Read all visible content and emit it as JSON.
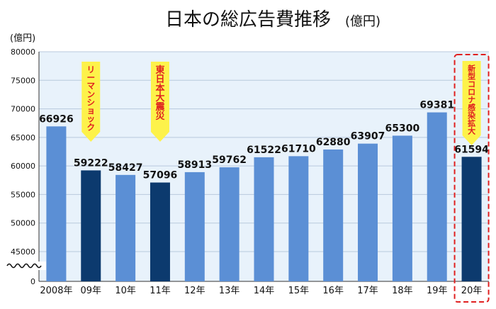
{
  "chart_data": {
    "type": "bar",
    "title": "日本の総広告費推移",
    "title_unit": "(億円)",
    "ylabel": "(億円)",
    "categories": [
      "2008年",
      "09年",
      "10年",
      "11年",
      "12年",
      "13年",
      "14年",
      "15年",
      "16年",
      "17年",
      "18年",
      "19年",
      "20年"
    ],
    "values": [
      66926,
      59222,
      58427,
      57096,
      58913,
      59762,
      61522,
      61710,
      62880,
      63907,
      65300,
      69381,
      61594
    ],
    "ylim": [
      40000,
      80000
    ],
    "yticks": [
      0,
      45000,
      50000,
      55000,
      60000,
      65000,
      70000,
      75000,
      80000
    ],
    "axis_break": true,
    "grid": true,
    "highlighted": [
      "09年",
      "11年",
      "20年"
    ],
    "colors": {
      "normal": "#5b8fd5",
      "highlight": "#0c3a6e",
      "plot_background": "#e8f2fb",
      "banner": "#fdf24a",
      "banner_text": "#e02020",
      "dashed_box": "#e02020"
    },
    "annotations": [
      {
        "category": "09年",
        "text": "リーマンショック"
      },
      {
        "category": "11年",
        "text": "東日本大震災"
      },
      {
        "category": "20年",
        "text": "新型コロナ感染拡大"
      }
    ]
  }
}
